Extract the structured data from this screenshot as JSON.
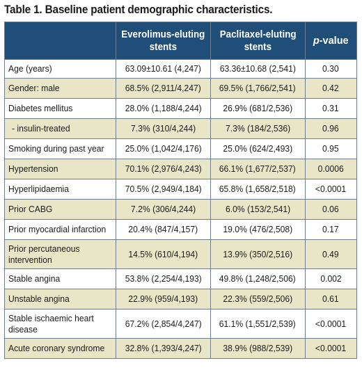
{
  "table": {
    "title": "Table 1. Baseline patient demographic characteristics.",
    "headers": {
      "col1_line1": "Everolimus-eluting",
      "col1_line2": "stents",
      "col2_line1": "Paclitaxel-eluting",
      "col2_line2": "stents",
      "col3_italic": "p",
      "col3_rest": "-value"
    },
    "rows": [
      {
        "label": "Age (years)",
        "label2": "",
        "sub": false,
        "eve": "63.09±10.61 (4,247)",
        "pac": "63.36±10.68 (2,541)",
        "p": "0.30"
      },
      {
        "label": "Gender: male",
        "label2": "",
        "sub": false,
        "eve": "68.5% (2,911/4,247)",
        "pac": "69.5% (1,766/2,541)",
        "p": "0.42"
      },
      {
        "label": "Diabetes mellitus",
        "label2": "",
        "sub": false,
        "eve": "28.0% (1,188/4,244)",
        "pac": "26.9% (681/2,536)",
        "p": "0.31"
      },
      {
        "label": "- insulin-treated",
        "label2": "",
        "sub": true,
        "eve": "7.3% (310/4,244)",
        "pac": "7.3% (184/2,536)",
        "p": "0.96"
      },
      {
        "label": "Smoking during past year",
        "label2": "",
        "sub": false,
        "eve": "25.0% (1,042/4,176)",
        "pac": "25.0% (624/2,493)",
        "p": "0.95"
      },
      {
        "label": "Hypertension",
        "label2": "",
        "sub": false,
        "eve": "70.1% (2,976/4,243)",
        "pac": "66.1% (1,677/2,537)",
        "p": "0.0006"
      },
      {
        "label": "Hyperlipidaemia",
        "label2": "",
        "sub": false,
        "eve": "70.5% (2,949/4,184)",
        "pac": "65.8% (1,658/2,518)",
        "p": "<0.0001"
      },
      {
        "label": "Prior CABG",
        "label2": "",
        "sub": false,
        "eve": "7.2% (306/4,244)",
        "pac": "6.0% (153/2,541)",
        "p": "0.06"
      },
      {
        "label": "Prior myocardial infarction",
        "label2": "",
        "sub": false,
        "eve": "20.4% (847/4,157)",
        "pac": "19.0% (476/2,508)",
        "p": "0.17"
      },
      {
        "label": "Prior percutaneous",
        "label2": "intervention",
        "sub": false,
        "eve": "14.5% (610/4,194)",
        "pac": "13.9% (350/2,516)",
        "p": "0.49"
      },
      {
        "label": "Stable angina",
        "label2": "",
        "sub": false,
        "eve": "53.8% (2,254/4,193)",
        "pac": "49.8% (1,248/2,506)",
        "p": "0.002"
      },
      {
        "label": "Unstable angina",
        "label2": "",
        "sub": false,
        "eve": "22.9% (959/4,193)",
        "pac": "22.3% (559/2,506)",
        "p": "0.61"
      },
      {
        "label": "Stable ischaemic heart",
        "label2": "disease",
        "sub": false,
        "eve": "67.2% (2,854/4,247)",
        "pac": "61.1% (1,551/2,539)",
        "p": "<0.0001"
      },
      {
        "label": "Acute coronary syndrome",
        "label2": "",
        "sub": false,
        "eve": "32.8% (1,393/4,247)",
        "pac": "38.9% (988/2,539)",
        "p": "<0.0001"
      }
    ],
    "colors": {
      "header_bg": "#1f4e79",
      "header_text": "#ffffff",
      "alt_row_bg": "#e9e6c8",
      "row_bg": "#ffffff",
      "border": "#6f7d8c"
    }
  }
}
